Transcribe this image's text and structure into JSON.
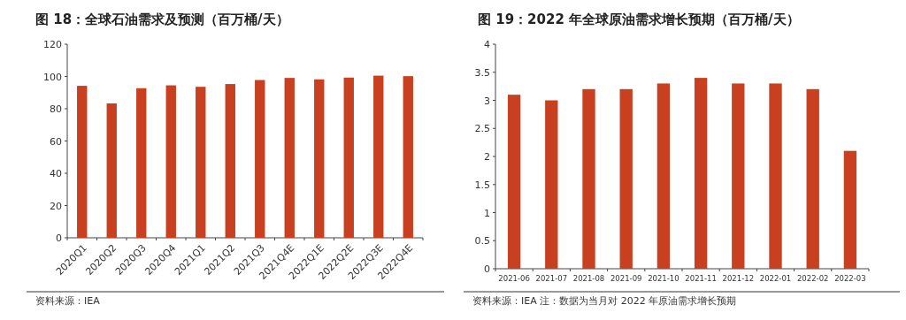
{
  "chart_data": [
    {
      "type": "bar",
      "title": "图 18：全球石油需求及预测（百万桶/天）",
      "categories": [
        "2020Q1",
        "2020Q2",
        "2020Q3",
        "2020Q4",
        "2021Q1",
        "2021Q2",
        "2021Q3",
        "2021Q4E",
        "2022Q1E",
        "2022Q2E",
        "2022Q3E",
        "2022Q4E"
      ],
      "values": [
        94.2,
        83.3,
        92.7,
        94.5,
        93.6,
        95.3,
        97.8,
        99.1,
        98.2,
        99.3,
        100.5,
        100.2
      ],
      "color": "#c8401f",
      "ylim": [
        0,
        120
      ],
      "yticks": [
        0,
        20,
        40,
        60,
        80,
        100,
        120
      ],
      "annotations": [
        "资料来源：IEA"
      ]
    },
    {
      "type": "bar",
      "title": "图 19：2022 年全球原油需求增长预期（百万桶/天）",
      "categories": [
        "2021-06",
        "2021-07",
        "2021-08",
        "2021-09",
        "2021-10",
        "2021-11",
        "2021-12",
        "2022-01",
        "2022-02",
        "2022-03"
      ],
      "values": [
        3.1,
        3.0,
        3.2,
        3.2,
        3.3,
        3.4,
        3.3,
        3.3,
        3.2,
        2.1
      ],
      "color": "#c8401f",
      "ylim": [
        0,
        4
      ],
      "yticks": [
        0,
        0.5,
        1,
        1.5,
        2,
        2.5,
        3,
        3.5,
        4
      ],
      "annotations": [
        "资料来源：IEA  注：数据为当月对 2022 年原油需求增长预期"
      ]
    }
  ]
}
